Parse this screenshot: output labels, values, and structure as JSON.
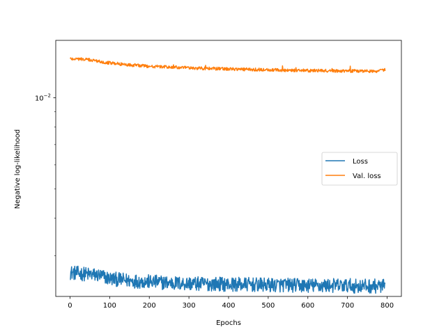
{
  "chart_data": {
    "type": "line",
    "title": "",
    "xlabel": "Epochs",
    "ylabel": "Negative log-likelihood",
    "xlim": [
      -36,
      836
    ],
    "ylim": [
      0.0022,
      0.0155
    ],
    "yscale": "log",
    "xticks": [
      0,
      100,
      200,
      300,
      400,
      500,
      600,
      700,
      800
    ],
    "xtick_labels": [
      "0",
      "100",
      "200",
      "300",
      "400",
      "500",
      "600",
      "700",
      "800"
    ],
    "yticks": [
      0.01
    ],
    "ytick_labels": [
      {
        "base": "10",
        "exp": "−2"
      }
    ],
    "yminor_ticks": [
      0.003,
      0.004,
      0.005,
      0.006,
      0.007,
      0.008,
      0.009
    ],
    "grid": false,
    "legend": {
      "placement": "center-right",
      "entries": [
        "Loss",
        "Val. loss"
      ]
    },
    "series": [
      {
        "name": "Loss",
        "color": "#1f77b4",
        "x": [
          0,
          25,
          50,
          75,
          100,
          125,
          150,
          175,
          200,
          225,
          250,
          275,
          300,
          325,
          350,
          375,
          400,
          425,
          450,
          475,
          500,
          525,
          550,
          575,
          600,
          625,
          650,
          675,
          700,
          725,
          750,
          775,
          795
        ],
        "y": [
          0.00264,
          0.00262,
          0.0026,
          0.00258,
          0.00252,
          0.0025,
          0.00248,
          0.00247,
          0.00246,
          0.00245,
          0.00244,
          0.00243,
          0.00243,
          0.00242,
          0.00242,
          0.00242,
          0.00241,
          0.00241,
          0.00241,
          0.0024,
          0.0024,
          0.0024,
          0.0024,
          0.00239,
          0.00239,
          0.00239,
          0.00239,
          0.00239,
          0.00239,
          0.00238,
          0.00238,
          0.00238,
          0.00238
        ]
      },
      {
        "name": "Val. loss",
        "color": "#ff7f0e",
        "x": [
          0,
          25,
          50,
          75,
          100,
          125,
          150,
          175,
          200,
          225,
          250,
          275,
          300,
          325,
          350,
          375,
          400,
          425,
          450,
          475,
          500,
          525,
          550,
          575,
          600,
          625,
          650,
          675,
          700,
          725,
          750,
          775,
          795
        ],
        "y": [
          0.01348,
          0.01345,
          0.01335,
          0.0132,
          0.01305,
          0.01295,
          0.01285,
          0.01278,
          0.01272,
          0.01268,
          0.01264,
          0.0126,
          0.01256,
          0.01253,
          0.0125,
          0.01248,
          0.01246,
          0.01244,
          0.01242,
          0.0124,
          0.01238,
          0.01236,
          0.01234,
          0.01232,
          0.01231,
          0.0123,
          0.01229,
          0.01228,
          0.01228,
          0.01227,
          0.01227,
          0.01226,
          0.0124
        ]
      }
    ]
  }
}
